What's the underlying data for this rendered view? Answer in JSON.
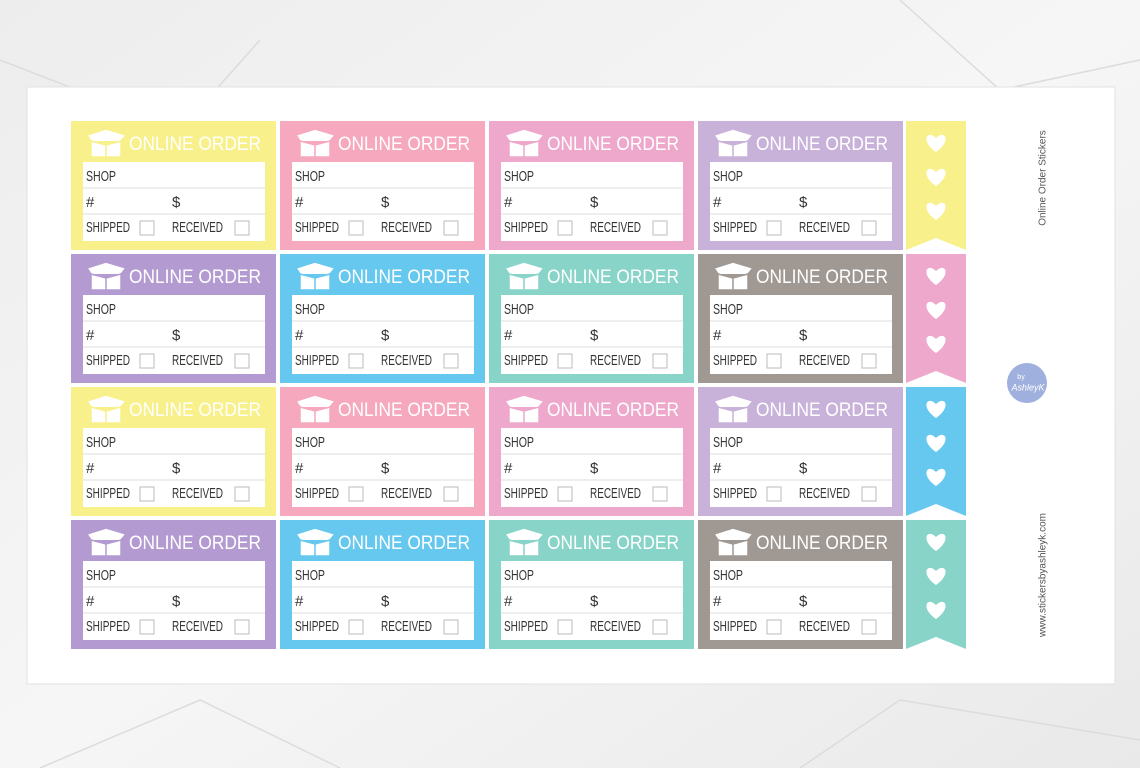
{
  "sheet": {
    "title": "Online Order Stickers",
    "website": "www.stickersbyashleyk.com",
    "logo": {
      "line1": "by",
      "line2": "AshleyK"
    }
  },
  "sticker_template": {
    "title": "ONLINE ORDER",
    "shop": "SHOP",
    "number": "#",
    "amount": "$",
    "shipped": "SHIPPED",
    "received": "RECEIVED"
  },
  "stickers": [
    {
      "color": "#f8f08a"
    },
    {
      "color": "#f6a9be"
    },
    {
      "color": "#eda8cc"
    },
    {
      "color": "#c9b2da"
    },
    {
      "color": "#b39bd2"
    },
    {
      "color": "#66c8ee"
    },
    {
      "color": "#88d4c8"
    },
    {
      "color": "#a09893"
    },
    {
      "color": "#f8f08a"
    },
    {
      "color": "#f6a9be"
    },
    {
      "color": "#eda8cc"
    },
    {
      "color": "#c9b2da"
    },
    {
      "color": "#b39bd2"
    },
    {
      "color": "#66c8ee"
    },
    {
      "color": "#88d4c8"
    },
    {
      "color": "#a09893"
    }
  ],
  "flags": [
    {
      "color": "#f8f08a"
    },
    {
      "color": "#eda8cc"
    },
    {
      "color": "#66c8ee"
    },
    {
      "color": "#88d4c8"
    }
  ]
}
